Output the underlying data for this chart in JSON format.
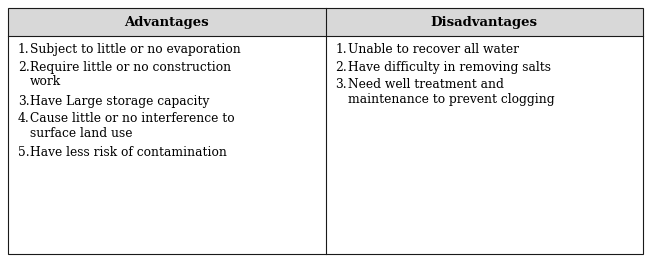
{
  "headers": [
    "Advantages",
    "Disadvantages"
  ],
  "adv_items": [
    [
      "1.",
      "Subject to little or no evaporation"
    ],
    [
      "2.",
      "Require little or no construction\nwork"
    ],
    [
      "3.",
      "Have Large storage capacity"
    ],
    [
      "4.",
      "Cause little or no interference to\nsurface land use"
    ],
    [
      "5.",
      "Have less risk of contamination"
    ]
  ],
  "dis_items": [
    [
      "1.",
      "Unable to recover all water"
    ],
    [
      "2.",
      "Have difficulty in removing salts"
    ],
    [
      "3.",
      "Need well treatment and\nmaintenance to prevent clogging"
    ]
  ],
  "header_bg": "#d8d8d8",
  "bg_color": "#ffffff",
  "border_color": "#1a1a1a",
  "header_fontsize": 9.5,
  "body_fontsize": 8.8,
  "figsize": [
    6.51,
    2.62
  ],
  "dpi": 100
}
